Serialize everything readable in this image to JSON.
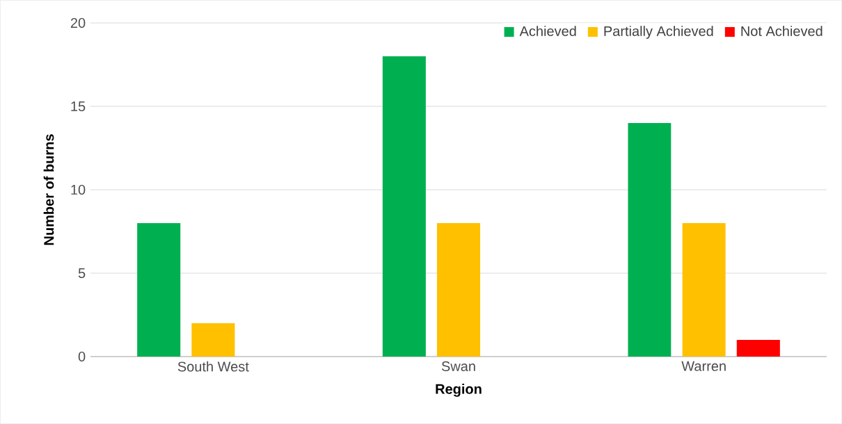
{
  "chart_data": {
    "type": "bar",
    "xlabel": "Region",
    "ylabel": "Number of burns",
    "categories": [
      "South West",
      "Swan",
      "Warren"
    ],
    "series": [
      {
        "name": "Achieved",
        "color": "#00b050",
        "values": [
          8,
          18,
          14
        ]
      },
      {
        "name": "Partially Achieved",
        "color": "#ffc000",
        "values": [
          2,
          8,
          8
        ]
      },
      {
        "name": "Not Achieved",
        "color": "#ff0000",
        "values": [
          0,
          0,
          1
        ]
      }
    ],
    "ylim": [
      0,
      20
    ],
    "yticks": [
      0,
      5,
      10,
      15,
      20
    ],
    "grid": "y",
    "legend": "top right"
  }
}
